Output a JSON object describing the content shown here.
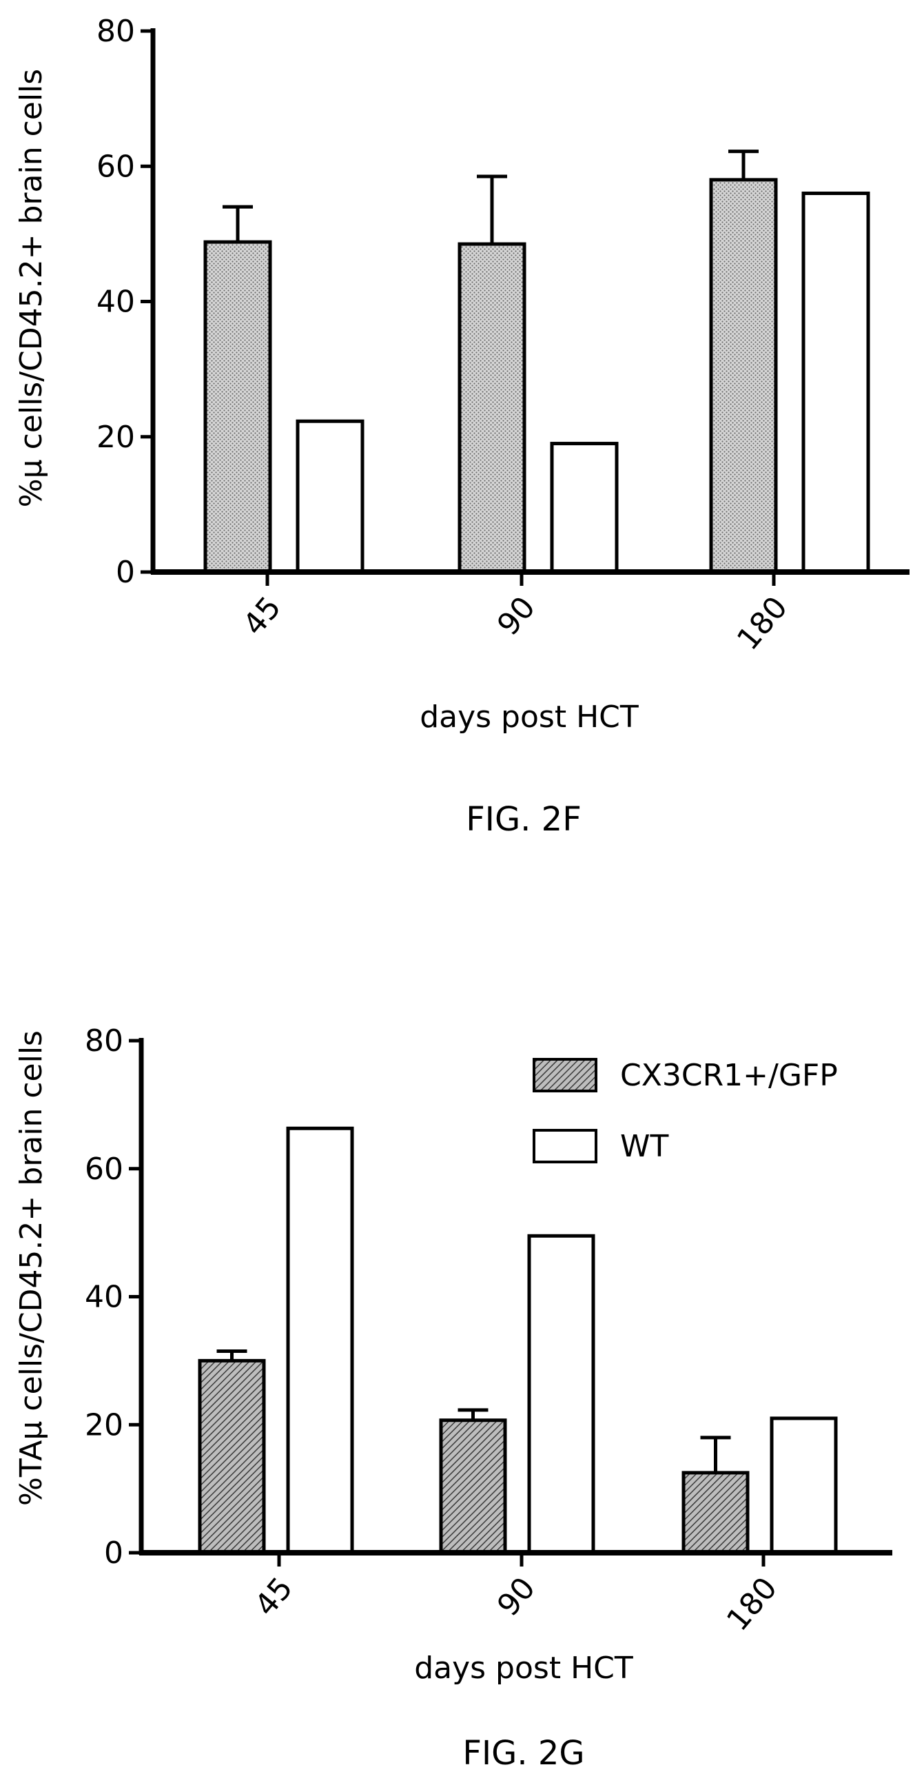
{
  "chart_data": [
    {
      "type": "bar",
      "title": "",
      "caption": "FIG. 2F",
      "xlabel": "days post HCT",
      "ylabel": "%μ cells/CD45.2+ brain cells",
      "ylim": [
        0,
        80
      ],
      "yticks": [
        "0",
        "20",
        "40",
        "60",
        "80"
      ],
      "categories": [
        "45",
        "90",
        "180"
      ],
      "grid": false,
      "legend": "none",
      "series": [
        {
          "values": [
            48.8,
            48.5,
            58.0
          ],
          "errors": [
            5.2,
            10.0,
            4.2
          ],
          "fill": "stipple"
        },
        {
          "values": [
            22.3,
            19.0,
            56.0
          ],
          "errors": [
            0,
            0,
            0
          ],
          "fill": "white"
        }
      ]
    },
    {
      "type": "bar",
      "title": "",
      "caption": "FIG. 2G",
      "xlabel": "days post HCT",
      "ylabel": "%TAμ cells/CD45.2+ brain cells",
      "ylim": [
        0,
        80
      ],
      "yticks": [
        "0",
        "20",
        "40",
        "60",
        "80"
      ],
      "categories": [
        "45",
        "90",
        "180"
      ],
      "grid": false,
      "legend": "top-right",
      "series": [
        {
          "name": "CX3CR1+/GFP",
          "values": [
            30.0,
            20.7,
            12.5
          ],
          "errors": [
            1.5,
            1.6,
            5.5
          ],
          "fill": "hatched"
        },
        {
          "name": "WT",
          "values": [
            66.3,
            49.5,
            21.0
          ],
          "errors": [
            0,
            0,
            0
          ],
          "fill": "white"
        }
      ]
    }
  ]
}
